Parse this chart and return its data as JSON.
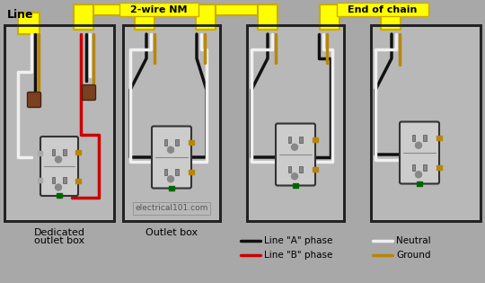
{
  "bg": "#a8a8a8",
  "box_bg": "#b8b8b8",
  "box_edge": "#222222",
  "yellow": "#ffff00",
  "yellow_dark": "#ccaa00",
  "black": "#111111",
  "red": "#cc0000",
  "white": "#f0f0f0",
  "gold": "#b8860b",
  "green": "#006600",
  "brown": "#7a4020",
  "outlet_body": "#cccccc",
  "outlet_edge": "#333333",
  "slot_color": "#888888",
  "figsize": [
    5.4,
    3.15
  ],
  "dpi": 100,
  "title_line": "Line",
  "label_2wire": "2-wire NM",
  "label_end": "End of chain",
  "label_box1a": "Dedicated",
  "label_box1b": "outlet box",
  "label_box2": "Outlet box",
  "label_wm": "electrical101.com",
  "leg_a": "Line \"A\" phase",
  "leg_b": "Line \"B\" phase",
  "leg_n": "Neutral",
  "leg_g": "Ground"
}
